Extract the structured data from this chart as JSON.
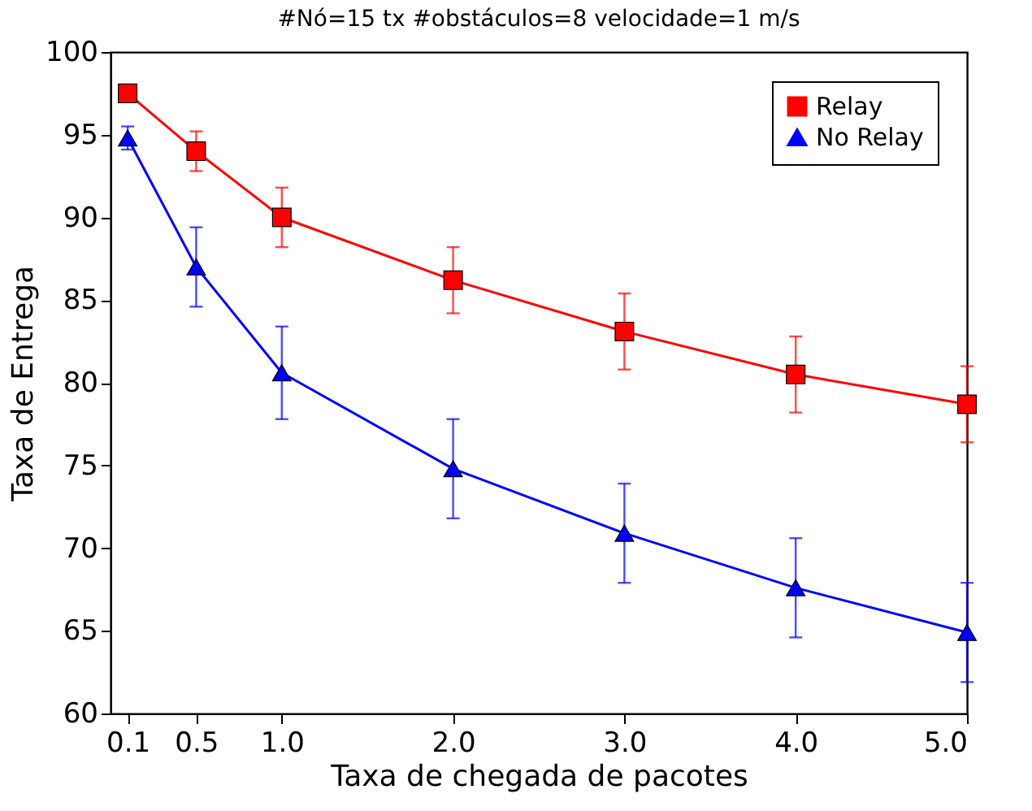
{
  "chart_data": {
    "type": "line",
    "title": "#Nó=15 tx #obstáculos=8 velocidade=1 m/s",
    "xlabel": "Taxa de chegada de pacotes",
    "ylabel": "Taxa de Entrega",
    "x": [
      0.1,
      0.5,
      1.0,
      2.0,
      3.0,
      4.0,
      5.0
    ],
    "series": [
      {
        "name": "Relay",
        "color": "#ff0000",
        "marker": "square",
        "values": [
          97.5,
          94.0,
          90.0,
          86.2,
          83.1,
          80.5,
          78.7
        ],
        "errors": [
          null,
          1.2,
          1.8,
          2.0,
          2.3,
          2.3,
          2.3
        ]
      },
      {
        "name": "No Relay",
        "color": "#0000ff",
        "marker": "triangle",
        "values": [
          94.8,
          87.0,
          80.6,
          74.8,
          70.9,
          67.6,
          64.9
        ],
        "errors": [
          0.7,
          2.4,
          2.8,
          3.0,
          3.0,
          3.0,
          3.0
        ]
      }
    ],
    "xlim": [
      0,
      5
    ],
    "xticks": [
      {
        "value": 0.1,
        "label": "0.1"
      },
      {
        "value": 0.5,
        "label": "0.5"
      },
      {
        "value": 1.0,
        "label": "1.0"
      },
      {
        "value": 2.0,
        "label": "2.0"
      },
      {
        "value": 3.0,
        "label": "3.0"
      },
      {
        "value": 4.0,
        "label": "4.0"
      },
      {
        "value": 5.0,
        "label": "5.0"
      }
    ],
    "ylim": [
      60,
      100
    ],
    "yticks": [
      60,
      65,
      70,
      75,
      80,
      85,
      90,
      95,
      100
    ],
    "grid": false,
    "legend": "top right",
    "line_style": "solid"
  }
}
